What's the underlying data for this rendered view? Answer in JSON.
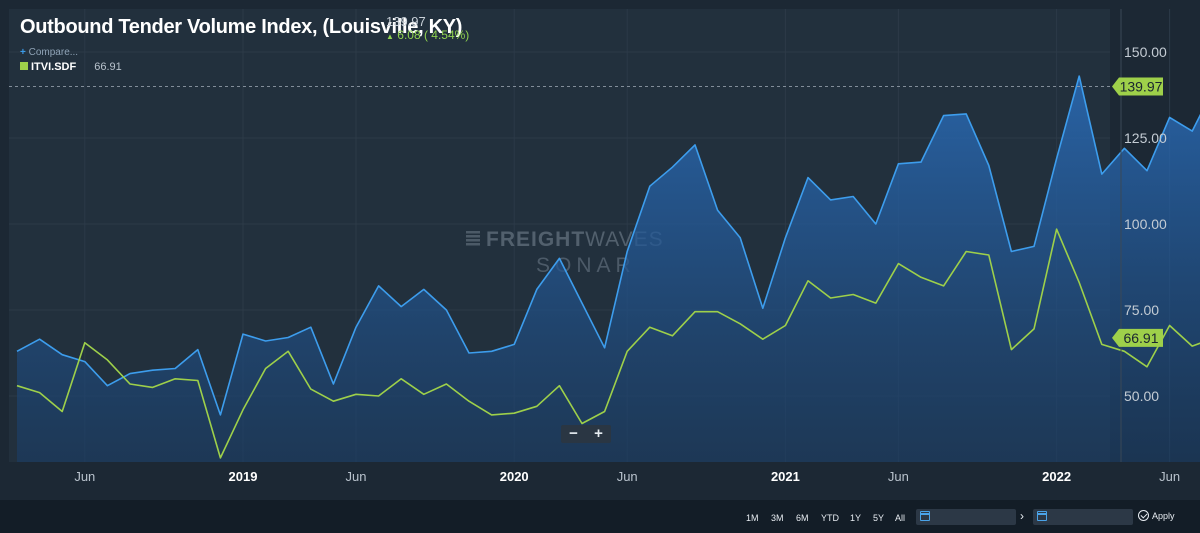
{
  "header": {
    "title": "Outbound Tender Volume Index, (Louisville, KY)",
    "last_value": "139.97",
    "change": "6.08 ( 4.54%)",
    "change_color": "#8fd14f"
  },
  "legend": {
    "compare_label": "Compare...",
    "series_name": "ITVI.SDF",
    "series_value": "66.91"
  },
  "watermark": {
    "line1_bold": "FREIGHT",
    "line1_light": "WAVES",
    "line2": "SONAR"
  },
  "zoom": {
    "minus": "−",
    "plus": "+"
  },
  "range_buttons": [
    "1M",
    "3M",
    "6M",
    "YTD",
    "1Y",
    "5Y",
    "All"
  ],
  "date_from": "",
  "date_to": "",
  "range_arrow": "›",
  "apply_label": "Apply",
  "chart_data": {
    "type": "line",
    "x_start": "2018-03",
    "x_step": "1 month",
    "series": [
      {
        "color": "#3d9ded",
        "fill": "area",
        "values": [
          63,
          66.5,
          62,
          60,
          53,
          56.5,
          57.5,
          58,
          63.5,
          44.5,
          68,
          66,
          67,
          70,
          53.5,
          70,
          82,
          76,
          81,
          75,
          62.5,
          63,
          65,
          81,
          90,
          77,
          64,
          92,
          111,
          116.5,
          123,
          104,
          96,
          75.5,
          96,
          113.5,
          107,
          108,
          100,
          117.5,
          118,
          131.5,
          132,
          117,
          92,
          93.5,
          119,
          143,
          114.5,
          122,
          115.5,
          131,
          127,
          139.97
        ]
      },
      {
        "name": "ITVI.SDF",
        "color": "#9ed04a",
        "fill": "none",
        "values": [
          53,
          51,
          45.5,
          65.5,
          60.5,
          53.5,
          52.5,
          55,
          54.5,
          32,
          46,
          58,
          63,
          52,
          48.5,
          50.5,
          50,
          55,
          50.5,
          53.5,
          48.5,
          44.5,
          45,
          47,
          53,
          42,
          45.5,
          63,
          70,
          67.5,
          74.5,
          74.5,
          71,
          66.5,
          70.5,
          83.5,
          78.5,
          79.5,
          77,
          88.5,
          84.5,
          82,
          92,
          91,
          63.5,
          69.5,
          98.5,
          83,
          65,
          63,
          58.5,
          70.5,
          64.5,
          66.91
        ]
      }
    ],
    "x_ticks": [
      {
        "label": "Jun",
        "date": "2018-06"
      },
      {
        "label": "2019",
        "date": "2019-01",
        "bold": true
      },
      {
        "label": "Jun",
        "date": "2019-06"
      },
      {
        "label": "2020",
        "date": "2020-01",
        "bold": true
      },
      {
        "label": "Jun",
        "date": "2020-06"
      },
      {
        "label": "2021",
        "date": "2021-01",
        "bold": true
      },
      {
        "label": "Jun",
        "date": "2021-06"
      },
      {
        "label": "2022",
        "date": "2022-01",
        "bold": true
      },
      {
        "label": "Jun",
        "date": "2022-06"
      }
    ],
    "y_ticks": [
      "150.00",
      "125.00",
      "100.00",
      "75.00",
      "50.00"
    ],
    "y_tick_values": [
      150,
      125,
      100,
      75,
      50
    ],
    "ylim": [
      30,
      160
    ],
    "last_labels": [
      {
        "text": "139.97",
        "value": 139.97,
        "color": "#9ed04a"
      },
      {
        "text": "66.91",
        "value": 66.91,
        "color": "#9ed04a"
      }
    ],
    "reference_line": 139.97,
    "grid": true,
    "legend_position": "top-left"
  }
}
